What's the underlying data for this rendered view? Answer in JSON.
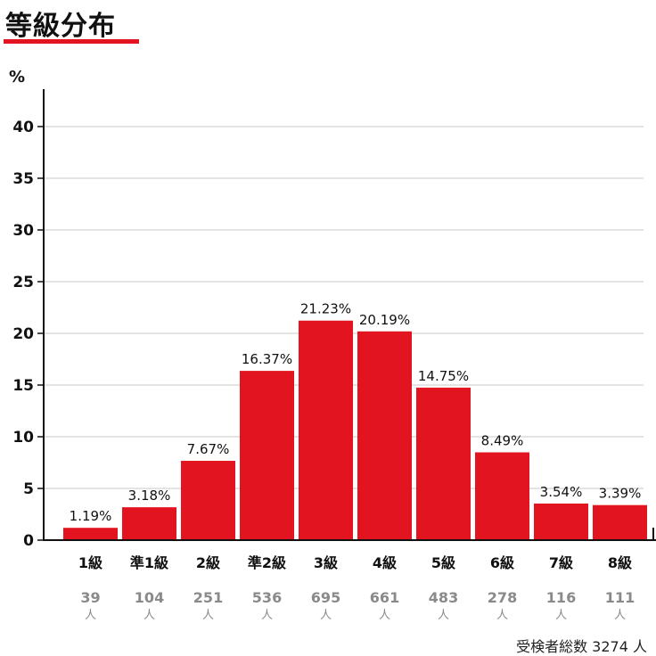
{
  "title": "等級分布",
  "colors": {
    "bar": "#e2141f",
    "grid": "#c8c8c8",
    "count": "#8a8a8a",
    "accent": "#e2141f"
  },
  "chart_data": {
    "type": "bar",
    "ylabel": "%",
    "ylim": [
      0,
      45
    ],
    "yticks": [
      0,
      5,
      10,
      15,
      20,
      25,
      30,
      35,
      40
    ],
    "grid": true,
    "categories": [
      "1級",
      "準1級",
      "2級",
      "準2級",
      "3級",
      "4級",
      "5級",
      "6級",
      "7級",
      "8級"
    ],
    "values": [
      1.19,
      3.18,
      7.67,
      16.37,
      21.23,
      20.19,
      14.75,
      8.49,
      3.54,
      3.39
    ],
    "value_labels": [
      "1.19%",
      "3.18%",
      "7.67%",
      "16.37%",
      "21.23%",
      "20.19%",
      "14.75%",
      "8.49%",
      "3.54%",
      "3.39%"
    ],
    "counts": [
      "39",
      "104",
      "251",
      "536",
      "695",
      "661",
      "483",
      "278",
      "116",
      "111"
    ],
    "count_unit": "人"
  },
  "total_label": "受検者総数 3274 人"
}
